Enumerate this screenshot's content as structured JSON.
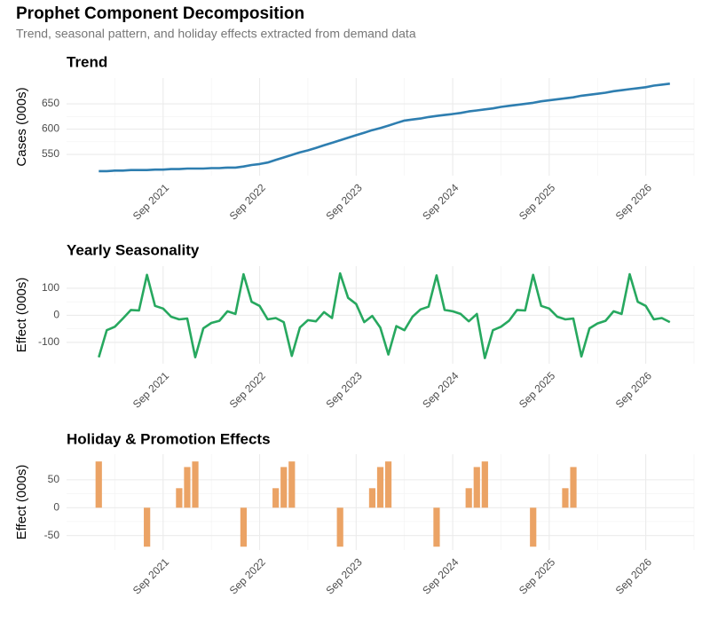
{
  "title": "Prophet Component Decomposition",
  "subtitle": "Trend, seasonal pattern, and holiday effects extracted from demand data",
  "chart_data": [
    {
      "type": "line",
      "title": "Trend",
      "y_label": "Cases (000s)",
      "color": "#2e7eb0",
      "grid": true,
      "x": [
        "2021-01",
        "2021-02",
        "2021-03",
        "2021-04",
        "2021-05",
        "2021-06",
        "2021-07",
        "2021-08",
        "2021-09",
        "2021-10",
        "2021-11",
        "2021-12",
        "2022-01",
        "2022-02",
        "2022-03",
        "2022-04",
        "2022-05",
        "2022-06",
        "2022-07",
        "2022-08",
        "2022-09",
        "2022-10",
        "2022-11",
        "2022-12",
        "2023-01",
        "2023-02",
        "2023-03",
        "2023-04",
        "2023-05",
        "2023-06",
        "2023-07",
        "2023-08",
        "2023-09",
        "2023-10",
        "2023-11",
        "2023-12",
        "2024-01",
        "2024-02",
        "2024-03",
        "2024-04",
        "2024-05",
        "2024-06",
        "2024-07",
        "2024-08",
        "2024-09",
        "2024-10",
        "2024-11",
        "2024-12",
        "2025-01",
        "2025-02",
        "2025-03",
        "2025-04",
        "2025-05",
        "2025-06",
        "2025-07",
        "2025-08",
        "2025-09",
        "2025-10",
        "2025-11",
        "2025-12",
        "2026-01",
        "2026-02",
        "2026-03",
        "2026-04",
        "2026-05",
        "2026-06",
        "2026-07",
        "2026-08",
        "2026-09",
        "2026-10",
        "2026-11",
        "2026-12"
      ],
      "values": [
        517,
        517,
        518,
        518,
        519,
        519,
        519,
        520,
        520,
        521,
        521,
        522,
        522,
        522,
        523,
        523,
        524,
        524,
        526,
        529,
        531,
        534,
        539,
        544,
        549,
        554,
        558,
        563,
        568,
        573,
        578,
        583,
        588,
        593,
        598,
        602,
        607,
        612,
        617,
        619,
        621,
        624,
        626,
        628,
        630,
        632,
        635,
        637,
        639,
        641,
        644,
        646,
        648,
        650,
        652,
        655,
        657,
        659,
        661,
        663,
        666,
        668,
        670,
        672,
        675,
        677,
        679,
        681,
        683,
        686,
        688,
        690
      ],
      "xlim": [
        "2020-09",
        "2027-03"
      ],
      "xticks": [
        {
          "value": "2021-09",
          "label": "Sep 2021"
        },
        {
          "value": "2022-09",
          "label": "Sep 2022"
        },
        {
          "value": "2023-09",
          "label": "Sep 2023"
        },
        {
          "value": "2024-09",
          "label": "Sep 2024"
        },
        {
          "value": "2025-09",
          "label": "Sep 2025"
        },
        {
          "value": "2026-09",
          "label": "Sep 2026"
        }
      ],
      "ylim": [
        508,
        701
      ],
      "yticks": [
        550,
        600,
        650
      ]
    },
    {
      "type": "line",
      "title": "Yearly Seasonality",
      "y_label": "Effect (000s)",
      "color": "#27a85f",
      "grid": true,
      "x": [
        "2021-01",
        "2021-02",
        "2021-03",
        "2021-04",
        "2021-05",
        "2021-06",
        "2021-07",
        "2021-08",
        "2021-09",
        "2021-10",
        "2021-11",
        "2021-12",
        "2022-01",
        "2022-02",
        "2022-03",
        "2022-04",
        "2022-05",
        "2022-06",
        "2022-07",
        "2022-08",
        "2022-09",
        "2022-10",
        "2022-11",
        "2022-12",
        "2023-01",
        "2023-02",
        "2023-03",
        "2023-04",
        "2023-05",
        "2023-06",
        "2023-07",
        "2023-08",
        "2023-09",
        "2023-10",
        "2023-11",
        "2023-12",
        "2024-01",
        "2024-02",
        "2024-03",
        "2024-04",
        "2024-05",
        "2024-06",
        "2024-07",
        "2024-08",
        "2024-09",
        "2024-10",
        "2024-11",
        "2024-12",
        "2025-01",
        "2025-02",
        "2025-03",
        "2025-04",
        "2025-05",
        "2025-06",
        "2025-07",
        "2025-08",
        "2025-09",
        "2025-10",
        "2025-11",
        "2025-12",
        "2026-01",
        "2026-02",
        "2026-03",
        "2026-04",
        "2026-05",
        "2026-06",
        "2026-07",
        "2026-08",
        "2026-09",
        "2026-10",
        "2026-11",
        "2026-12"
      ],
      "values": [
        -155,
        -55,
        -42,
        -12,
        20,
        18,
        150,
        35,
        25,
        -5,
        -15,
        -12,
        -155,
        -48,
        -28,
        -20,
        15,
        5,
        152,
        50,
        35,
        -15,
        -10,
        -25,
        -150,
        -45,
        -18,
        -22,
        12,
        -10,
        155,
        65,
        42,
        -25,
        -2,
        -45,
        -145,
        -40,
        -55,
        -5,
        22,
        32,
        148,
        20,
        15,
        5,
        -22,
        5,
        -158,
        -55,
        -42,
        -20,
        20,
        18,
        150,
        35,
        25,
        -5,
        -15,
        -12,
        -152,
        -48,
        -30,
        -20,
        15,
        5,
        152,
        50,
        35,
        -15,
        -10,
        -25
      ],
      "xlim": [
        "2020-09",
        "2027-03"
      ],
      "xticks": [
        {
          "value": "2021-09",
          "label": "Sep 2021"
        },
        {
          "value": "2022-09",
          "label": "Sep 2022"
        },
        {
          "value": "2023-09",
          "label": "Sep 2023"
        },
        {
          "value": "2024-09",
          "label": "Sep 2024"
        },
        {
          "value": "2025-09",
          "label": "Sep 2025"
        },
        {
          "value": "2026-09",
          "label": "Sep 2026"
        }
      ],
      "ylim": [
        -179,
        182
      ],
      "yticks": [
        -100,
        0,
        100
      ]
    },
    {
      "type": "bar",
      "title": "Holiday & Promotion Effects",
      "y_label": "Effect (000s)",
      "color": "#eba365",
      "grid": true,
      "x": [
        "2021-01",
        "2021-02",
        "2021-03",
        "2021-04",
        "2021-05",
        "2021-06",
        "2021-07",
        "2021-08",
        "2021-09",
        "2021-10",
        "2021-11",
        "2021-12",
        "2022-01",
        "2022-02",
        "2022-03",
        "2022-04",
        "2022-05",
        "2022-06",
        "2022-07",
        "2022-08",
        "2022-09",
        "2022-10",
        "2022-11",
        "2022-12",
        "2023-01",
        "2023-02",
        "2023-03",
        "2023-04",
        "2023-05",
        "2023-06",
        "2023-07",
        "2023-08",
        "2023-09",
        "2023-10",
        "2023-11",
        "2023-12",
        "2024-01",
        "2024-02",
        "2024-03",
        "2024-04",
        "2024-05",
        "2024-06",
        "2024-07",
        "2024-08",
        "2024-09",
        "2024-10",
        "2024-11",
        "2024-12",
        "2025-01",
        "2025-02",
        "2025-03",
        "2025-04",
        "2025-05",
        "2025-06",
        "2025-07",
        "2025-08",
        "2025-09",
        "2025-10",
        "2025-11",
        "2025-12",
        "2026-01",
        "2026-02",
        "2026-03",
        "2026-04",
        "2026-05",
        "2026-06",
        "2026-07",
        "2026-08",
        "2026-09",
        "2026-10",
        "2026-11",
        "2026-12"
      ],
      "values": [
        83,
        0,
        0,
        0,
        0,
        0,
        -70,
        0,
        0,
        0,
        35,
        73,
        83,
        0,
        0,
        0,
        0,
        0,
        -70,
        0,
        0,
        0,
        35,
        73,
        83,
        0,
        0,
        0,
        0,
        0,
        -70,
        0,
        0,
        0,
        35,
        73,
        83,
        0,
        0,
        0,
        0,
        0,
        -70,
        0,
        0,
        0,
        35,
        73,
        83,
        0,
        0,
        0,
        0,
        0,
        -70,
        0,
        0,
        0,
        35,
        73,
        0,
        0,
        0,
        0,
        0,
        0,
        0,
        0,
        0,
        0,
        0,
        0
      ],
      "xlim": [
        "2020-09",
        "2027-03"
      ],
      "xticks": [
        {
          "value": "2021-09",
          "label": "Sep 2021"
        },
        {
          "value": "2022-09",
          "label": "Sep 2022"
        },
        {
          "value": "2023-09",
          "label": "Sep 2023"
        },
        {
          "value": "2024-09",
          "label": "Sep 2024"
        },
        {
          "value": "2025-09",
          "label": "Sep 2025"
        },
        {
          "value": "2026-09",
          "label": "Sep 2026"
        }
      ],
      "ylim": [
        -76,
        96
      ],
      "yticks": [
        -50,
        0,
        50
      ]
    }
  ]
}
